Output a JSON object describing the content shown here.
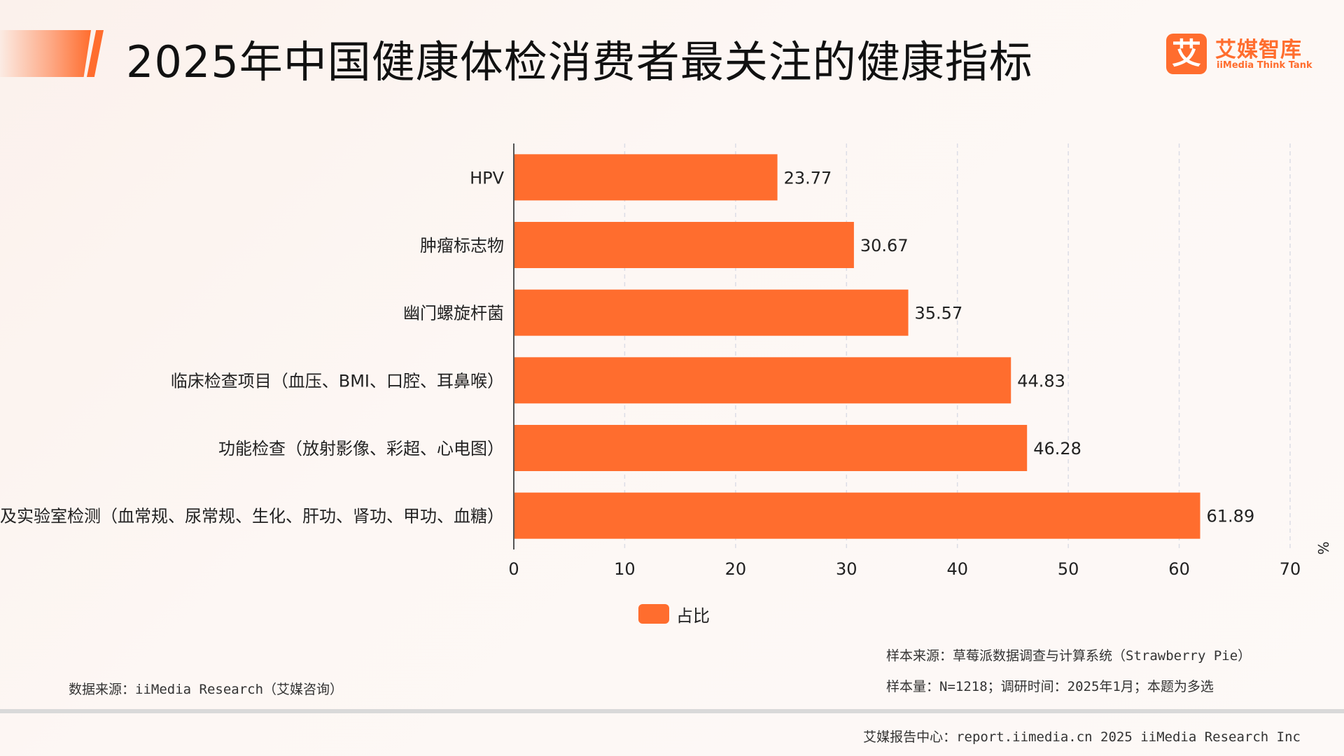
{
  "title": "2025年中国健康体检消费者最关注的健康指标",
  "logo": {
    "cn": "艾媒智库",
    "en": "iiMedia Think Tank",
    "mark": "艾"
  },
  "chart_data": {
    "type": "bar",
    "orientation": "horizontal",
    "title": "2025年中国健康体检消费者最关注的健康指标",
    "categories": [
      "HPV",
      "肿瘤标志物",
      "幽门螺旋杆菌",
      "临床检查项目（血压、BMI、口腔、耳鼻喉）",
      "功能检查（放射影像、彩超、心电图）",
      "生化及实验室检测（血常规、尿常规、生化、肝功、肾功、甲功、血糖）"
    ],
    "values": [
      23.77,
      30.67,
      35.57,
      44.83,
      46.28,
      61.89
    ],
    "value_labels": [
      "23.77",
      "30.67",
      "35.57",
      "44.83",
      "46.28",
      "61.89"
    ],
    "series": [
      {
        "name": "占比",
        "values": [
          23.77,
          30.67,
          35.57,
          44.83,
          46.28,
          61.89
        ]
      }
    ],
    "x_ticks": [
      "0",
      "10",
      "20",
      "30",
      "40",
      "50",
      "60",
      "70"
    ],
    "xlim": [
      0,
      70
    ],
    "unit": "%",
    "grid": true,
    "legend_position": "bottom",
    "color": "#ff6d2e"
  },
  "legend": {
    "label": "占比"
  },
  "notes": {
    "source_sample": "样本来源：草莓派数据调查与计算系统（Strawberry Pie）",
    "sample_size": "样本量：N=1218；调研时间：2025年1月；本题为多选",
    "data_source": "数据来源：iiMedia Research（艾媒咨询）"
  },
  "footer": "艾媒报告中心：report.iimedia.cn   2025 iiMedia Research Inc"
}
